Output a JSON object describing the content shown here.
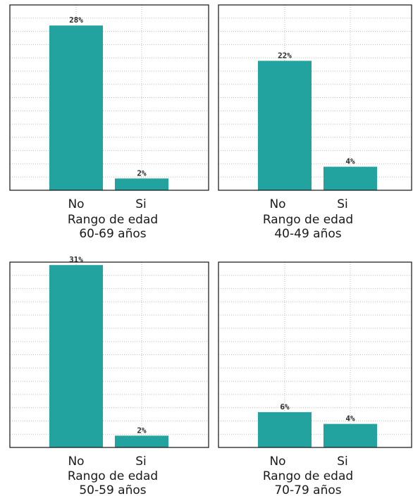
{
  "chart_data": [
    {
      "type": "bar",
      "categories": [
        "No",
        "Si"
      ],
      "values": [
        28,
        2
      ],
      "data_labels": [
        "28%",
        "2%"
      ],
      "xlabel": "Rango de edad",
      "group": "60-69 años",
      "ylim": [
        0,
        31.5
      ],
      "grid": true,
      "bar_color": "#22a39f"
    },
    {
      "type": "bar",
      "categories": [
        "No",
        "Si"
      ],
      "values": [
        22,
        4
      ],
      "data_labels": [
        "22%",
        "4%"
      ],
      "xlabel": "Rango de edad",
      "group": "40-49 años",
      "ylim": [
        0,
        31.5
      ],
      "grid": true,
      "bar_color": "#22a39f"
    },
    {
      "type": "bar",
      "categories": [
        "No",
        "Si"
      ],
      "values": [
        31,
        2
      ],
      "data_labels": [
        "31%",
        "2%"
      ],
      "xlabel": "Rango de edad",
      "group": "50-59 años",
      "ylim": [
        0,
        31.5
      ],
      "grid": true,
      "bar_color": "#22a39f"
    },
    {
      "type": "bar",
      "categories": [
        "No",
        "Si"
      ],
      "values": [
        6,
        4
      ],
      "data_labels": [
        "6%",
        "4%"
      ],
      "xlabel": "Rango de edad",
      "group": "70-79 años",
      "ylim": [
        0,
        31.5
      ],
      "grid": true,
      "bar_color": "#22a39f"
    }
  ]
}
